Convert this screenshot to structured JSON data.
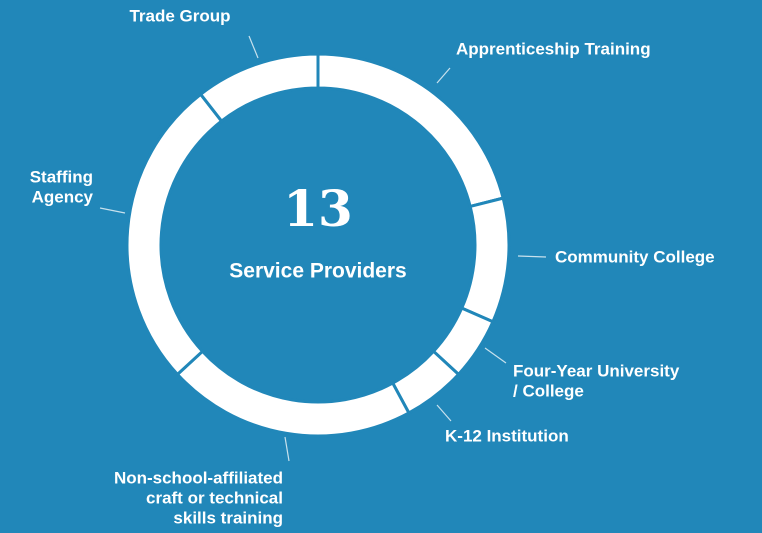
{
  "chart_data": {
    "type": "donut",
    "center_value": "13",
    "center_label": "Service Providers",
    "categories": [
      [
        "Apprenticeship Training"
      ],
      [
        "Community College"
      ],
      [
        "Four-Year University",
        "/ College"
      ],
      [
        "K-12 Institution"
      ],
      [
        "Non-school-affiliated",
        "craft or technical",
        "skills training"
      ],
      [
        "Staffing",
        "Agency"
      ],
      [
        "Trade Group"
      ]
    ],
    "values": [
      4,
      2,
      1,
      1,
      4,
      5,
      2
    ],
    "color": "#ffffff"
  }
}
